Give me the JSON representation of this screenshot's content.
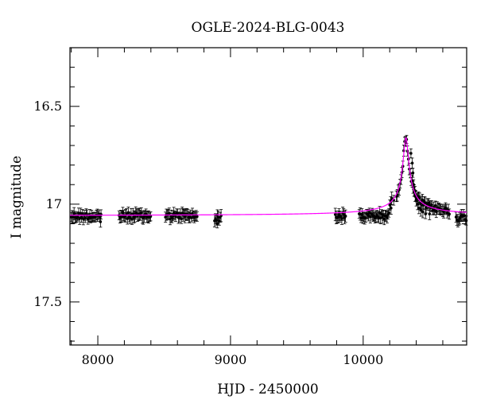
{
  "chart_data": {
    "type": "scatter",
    "title": "OGLE-2024-BLG-0043",
    "xlabel": "HJD - 2450000",
    "ylabel": "I magnitude",
    "xlim": [
      7790,
      10780
    ],
    "ylim": [
      17.72,
      16.2
    ],
    "y_inverted": true,
    "x_ticks": [
      8000,
      9000,
      10000
    ],
    "x_tick_labels": [
      "8000",
      "9000",
      "10000"
    ],
    "y_ticks": [
      16.5,
      17,
      17.5
    ],
    "y_tick_labels": [
      "16.5",
      "17",
      "17.5"
    ],
    "grid": false,
    "legend": "none",
    "colors": {
      "points": "#000000",
      "model": "#ff00ff"
    },
    "baseline_mag": 17.06,
    "observation_seasons": [
      {
        "start": 7800,
        "end": 8030,
        "mag": 17.06
      },
      {
        "start": 8160,
        "end": 8400,
        "mag": 17.06
      },
      {
        "start": 8510,
        "end": 8750,
        "mag": 17.06
      },
      {
        "start": 8880,
        "end": 8930,
        "mag": 17.07
      },
      {
        "start": 9790,
        "end": 9870,
        "mag": 17.06
      },
      {
        "start": 9970,
        "end": 10220,
        "mag": 17.06
      },
      {
        "start": 10250,
        "end": 10650,
        "mag": 17.06
      },
      {
        "start": 10700,
        "end": 10780,
        "mag": 17.07
      }
    ],
    "event_points": [
      {
        "x": 10210,
        "y": 17.02
      },
      {
        "x": 10230,
        "y": 16.98
      },
      {
        "x": 10360,
        "y": 16.74
      },
      {
        "x": 10370,
        "y": 16.79
      },
      {
        "x": 10375,
        "y": 16.84
      },
      {
        "x": 10380,
        "y": 16.9
      },
      {
        "x": 10385,
        "y": 16.93
      },
      {
        "x": 10392,
        "y": 16.96
      },
      {
        "x": 10400,
        "y": 16.98
      },
      {
        "x": 10410,
        "y": 17.0
      },
      {
        "x": 10420,
        "y": 17.02
      },
      {
        "x": 10435,
        "y": 17.03
      },
      {
        "x": 10450,
        "y": 17.04
      },
      {
        "x": 10470,
        "y": 17.05
      },
      {
        "x": 10500,
        "y": 17.05
      }
    ],
    "outlier_points": [
      {
        "x": 8900,
        "y": 17.1
      },
      {
        "x": 8020,
        "y": 17.09
      }
    ],
    "model": {
      "type": "point-lens",
      "t0": 10322,
      "peak_mag": 16.66,
      "baseline_mag": 17.06,
      "width_days": 36
    }
  }
}
